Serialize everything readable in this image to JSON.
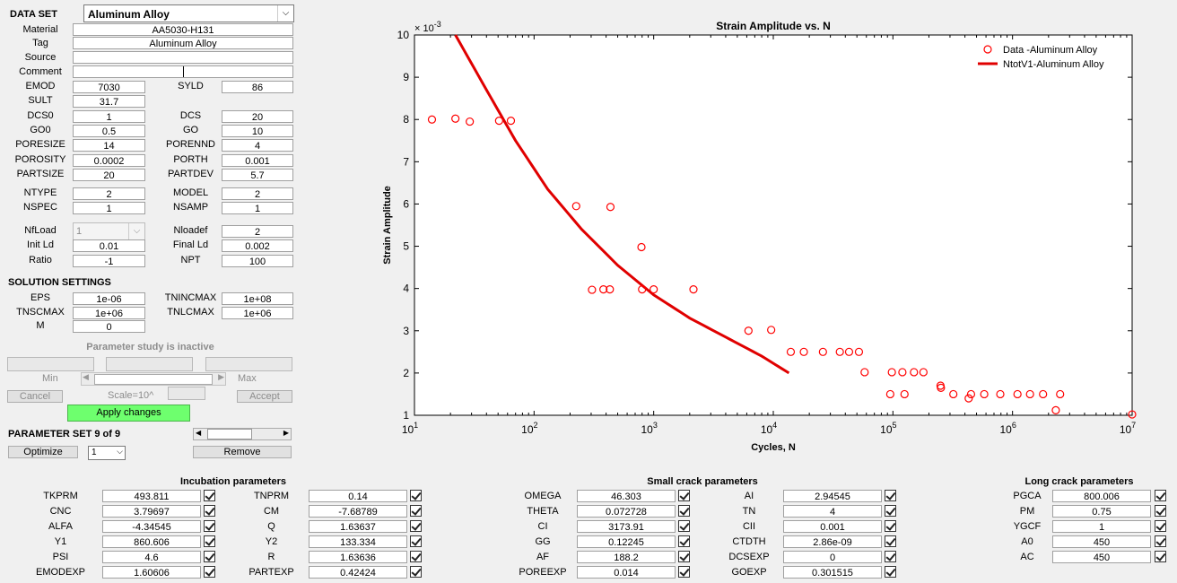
{
  "dataset": {
    "title": "DATA SET",
    "selected": "Aluminum Alloy",
    "rows": [
      {
        "label": "Material",
        "value": "AA5030-H131"
      },
      {
        "label": "Tag",
        "value": "Aluminum Alloy"
      },
      {
        "label": "Source",
        "value": ""
      },
      {
        "label": "Comment",
        "value": ""
      }
    ],
    "pairs": [
      {
        "l1": "EMOD",
        "v1": "7030",
        "l2": "SYLD",
        "v2": "86"
      },
      {
        "l1": "SULT",
        "v1": "31.7",
        "l2": "",
        "v2": ""
      },
      {
        "l1": "DCS0",
        "v1": "1",
        "l2": "DCS",
        "v2": "20"
      },
      {
        "l1": "GO0",
        "v1": "0.5",
        "l2": "GO",
        "v2": "10"
      },
      {
        "l1": "PORESIZE",
        "v1": "14",
        "l2": "PORENND",
        "v2": "4"
      },
      {
        "l1": "POROSITY",
        "v1": "0.0002",
        "l2": "PORTH",
        "v2": "0.001"
      },
      {
        "l1": "PARTSIZE",
        "v1": "20",
        "l2": "PARTDEV",
        "v2": "5.7"
      },
      {
        "l1": "NTYPE",
        "v1": "2",
        "l2": "MODEL",
        "v2": "2"
      },
      {
        "l1": "NSPEC",
        "v1": "1",
        "l2": "NSAMP",
        "v2": "1"
      }
    ],
    "load": [
      {
        "l1": "NfLoad",
        "v1": "1",
        "l2": "Nloadef",
        "v2": "2"
      },
      {
        "l1": "Init Ld",
        "v1": "0.01",
        "l2": "Final Ld",
        "v2": "0.002"
      },
      {
        "l1": "Ratio",
        "v1": "-1",
        "l2": "NPT",
        "v2": "100"
      }
    ]
  },
  "solution": {
    "title": "SOLUTION SETTINGS",
    "pairs": [
      {
        "l1": "EPS",
        "v1": "1e-06",
        "l2": "TNINCMAX",
        "v2": "1e+08"
      },
      {
        "l1": "TNSCMAX",
        "v1": "1e+06",
        "l2": "TNLCMAX",
        "v2": "1e+06"
      },
      {
        "l1": "M",
        "v1": "0",
        "l2": "",
        "v2": ""
      }
    ]
  },
  "study": {
    "status": "Parameter study is inactive",
    "min_label": "Min",
    "max_label": "Max",
    "cancel": "Cancel",
    "scale": "Scale=10^",
    "accept": "Accept",
    "apply": "Apply changes"
  },
  "paramset": {
    "title": "PARAMETER SET 9 of 9",
    "optimize": "Optimize",
    "select": "1",
    "remove": "Remove"
  },
  "panels": {
    "incubation": {
      "title": "Incubation parameters",
      "rows": [
        {
          "l1": "TKPRM",
          "v1": "493.811",
          "l2": "TNPRM",
          "v2": "0.14"
        },
        {
          "l1": "CNC",
          "v1": "3.79697",
          "l2": "CM",
          "v2": "-7.68789"
        },
        {
          "l1": "ALFA",
          "v1": "-4.34545",
          "l2": "Q",
          "v2": "1.63637"
        },
        {
          "l1": "Y1",
          "v1": "860.606",
          "l2": "Y2",
          "v2": "133.334"
        },
        {
          "l1": "PSI",
          "v1": "4.6",
          "l2": "R",
          "v2": "1.63636"
        },
        {
          "l1": "EMODEXP",
          "v1": "1.60606",
          "l2": "PARTEXP",
          "v2": "0.42424"
        }
      ]
    },
    "small": {
      "title": "Small crack parameters",
      "rows": [
        {
          "l1": "OMEGA",
          "v1": "46.303",
          "l2": "AI",
          "v2": "2.94545"
        },
        {
          "l1": "THETA",
          "v1": "0.072728",
          "l2": "TN",
          "v2": "4"
        },
        {
          "l1": "CI",
          "v1": "3173.91",
          "l2": "CII",
          "v2": "0.001"
        },
        {
          "l1": "GG",
          "v1": "0.12245",
          "l2": "CTDTH",
          "v2": "2.86e-09"
        },
        {
          "l1": "AF",
          "v1": "188.2",
          "l2": "DCSEXP",
          "v2": "0"
        },
        {
          "l1": "POREEXP",
          "v1": "0.014",
          "l2": "GOEXP",
          "v2": "0.301515"
        }
      ]
    },
    "long": {
      "title": "Long crack parameters",
      "rows": [
        {
          "l1": "PGCA",
          "v1": "800.006"
        },
        {
          "l1": "PM",
          "v1": "0.75"
        },
        {
          "l1": "YGCF",
          "v1": "1"
        },
        {
          "l1": "A0",
          "v1": "450"
        },
        {
          "l1": "AC",
          "v1": "450"
        }
      ]
    }
  },
  "chart_data": {
    "type": "scatter",
    "title": "Strain Amplitude vs. N",
    "xlabel": "Cycles, N",
    "ylabel": "Strain Amplitude",
    "y_multiplier": "× 10^-3",
    "xscale": "log",
    "xlim": [
      10,
      10000000
    ],
    "ylim": [
      1,
      10
    ],
    "x_ticks": [
      "10^1",
      "10^2",
      "10^3",
      "10^4",
      "10^5",
      "10^6",
      "10^7"
    ],
    "y_ticks": [
      "1",
      "2",
      "3",
      "4",
      "5",
      "6",
      "7",
      "8",
      "9",
      "10"
    ],
    "legend_position": "top-right",
    "series": [
      {
        "name": "Data -Aluminum Alloy",
        "kind": "marker",
        "color": "#ff0000",
        "points": [
          [
            14,
            8.0
          ],
          [
            22,
            8.02
          ],
          [
            29,
            7.95
          ],
          [
            51,
            7.97
          ],
          [
            64,
            7.97
          ],
          [
            225,
            5.95
          ],
          [
            305,
            3.97
          ],
          [
            380,
            3.98
          ],
          [
            430,
            3.98
          ],
          [
            435,
            5.93
          ],
          [
            790,
            4.98
          ],
          [
            800,
            3.98
          ],
          [
            1000,
            3.98
          ],
          [
            2150,
            3.98
          ],
          [
            6200,
            3.0
          ],
          [
            9600,
            3.02
          ],
          [
            14000,
            2.5
          ],
          [
            18000,
            2.5
          ],
          [
            26000,
            2.5
          ],
          [
            36000,
            2.5
          ],
          [
            43000,
            2.5
          ],
          [
            52000,
            2.5
          ],
          [
            58000,
            2.02
          ],
          [
            95000,
            1.5
          ],
          [
            98000,
            2.02
          ],
          [
            120000,
            2.02
          ],
          [
            125000,
            1.5
          ],
          [
            150000,
            2.02
          ],
          [
            180000,
            2.02
          ],
          [
            250000,
            1.7
          ],
          [
            252000,
            1.65
          ],
          [
            320000,
            1.5
          ],
          [
            430000,
            1.4
          ],
          [
            450000,
            1.5
          ],
          [
            580000,
            1.5
          ],
          [
            790000,
            1.5
          ],
          [
            1100000,
            1.5
          ],
          [
            1400000,
            1.5
          ],
          [
            1800000,
            1.5
          ],
          [
            2300000,
            1.12
          ],
          [
            2500000,
            1.5
          ],
          [
            10000000,
            1.02
          ]
        ]
      },
      {
        "name": "NtotV1-Aluminum Alloy",
        "kind": "line",
        "color": "#e00000",
        "points": [
          [
            22,
            10.0
          ],
          [
            40,
            8.7
          ],
          [
            70,
            7.5
          ],
          [
            130,
            6.35
          ],
          [
            250,
            5.4
          ],
          [
            500,
            4.55
          ],
          [
            1000,
            3.85
          ],
          [
            2000,
            3.3
          ],
          [
            4000,
            2.85
          ],
          [
            8000,
            2.4
          ],
          [
            13500,
            2.0
          ]
        ]
      }
    ]
  }
}
